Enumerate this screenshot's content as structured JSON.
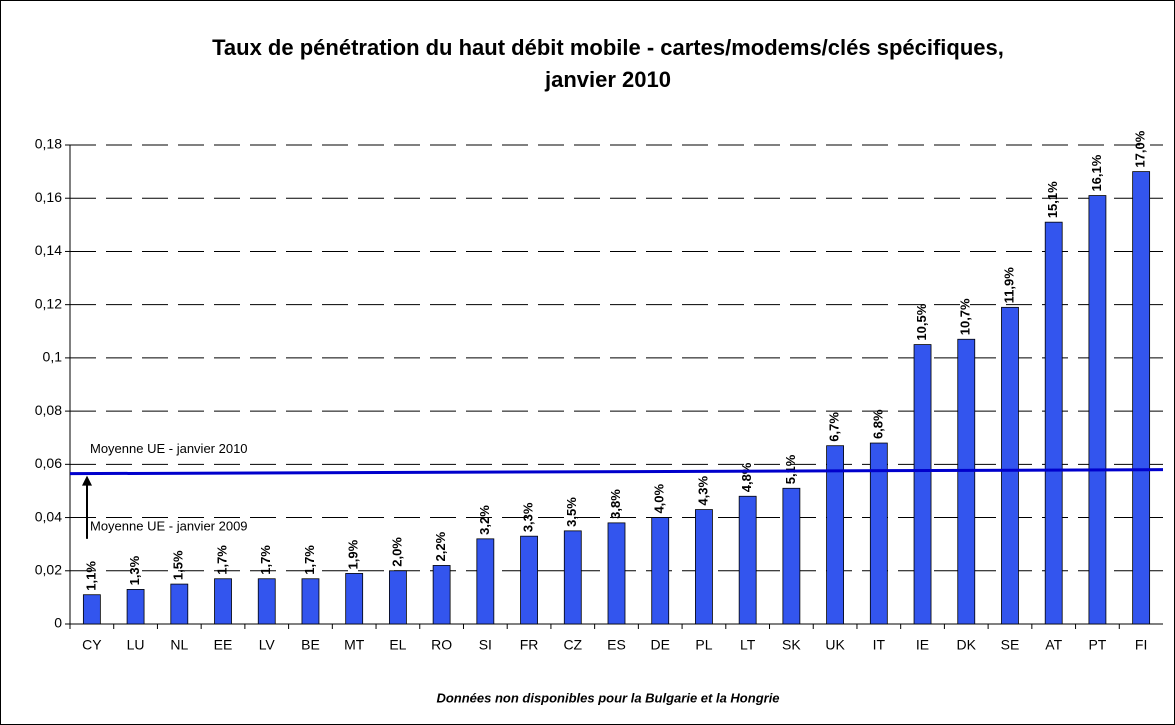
{
  "chart_data": {
    "type": "bar",
    "title": "Taux de pénétration du haut débit mobile - cartes/modems/clés spécifiques,",
    "subtitle": "janvier 2010",
    "footnote": "Données non disponibles pour la Bulgarie et la Hongrie",
    "categories": [
      "CY",
      "LU",
      "NL",
      "EE",
      "LV",
      "BE",
      "MT",
      "EL",
      "RO",
      "SI",
      "FR",
      "CZ",
      "ES",
      "DE",
      "PL",
      "LT",
      "SK",
      "UK",
      "IT",
      "IE",
      "DK",
      "SE",
      "AT",
      "PT",
      "FI"
    ],
    "values": [
      0.011,
      0.013,
      0.015,
      0.017,
      0.017,
      0.017,
      0.019,
      0.02,
      0.022,
      0.032,
      0.033,
      0.035,
      0.038,
      0.04,
      0.043,
      0.048,
      0.051,
      0.067,
      0.068,
      0.105,
      0.107,
      0.119,
      0.151,
      0.161,
      0.17
    ],
    "value_labels": [
      "1,1%",
      "1,3%",
      "1,5%",
      "1,7%",
      "1,7%",
      "1,7%",
      "1,9%",
      "2,0%",
      "2,2%",
      "3,2%",
      "3,3%",
      "3,5%",
      "3,8%",
      "4,0%",
      "4,3%",
      "4,8%",
      "5,1%",
      "6,7%",
      "6,8%",
      "10,5%",
      "10,7%",
      "11,9%",
      "15,1%",
      "16,1%",
      "17,0%"
    ],
    "color": "#3355ee",
    "ylim": [
      0,
      0.18
    ],
    "yticks": [
      {
        "value": 0,
        "label": "0"
      },
      {
        "value": 0.02,
        "label": "0,02"
      },
      {
        "value": 0.04,
        "label": "0,04"
      },
      {
        "value": 0.06,
        "label": "0,06"
      },
      {
        "value": 0.08,
        "label": "0,08"
      },
      {
        "value": 0.1,
        "label": "0,1"
      },
      {
        "value": 0.12,
        "label": "0,12"
      },
      {
        "value": 0.14,
        "label": "0,14"
      },
      {
        "value": 0.16,
        "label": "0,16"
      },
      {
        "value": 0.18,
        "label": "0,18"
      }
    ],
    "grid": true,
    "average_2010": {
      "label": "Moyenne UE - janvier 2010",
      "values": [
        0.0565,
        0.058
      ],
      "color": "#0000cc"
    },
    "average_2009": {
      "label": "Moyenne UE - janvier 2009",
      "value": 0.032
    }
  }
}
